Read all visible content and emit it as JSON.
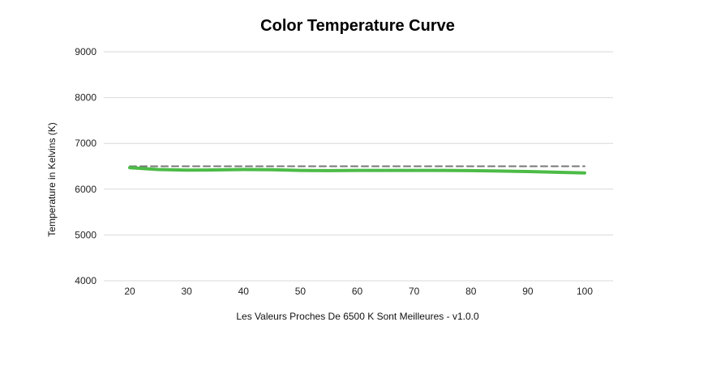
{
  "chart_data": {
    "type": "line",
    "title": "Color Temperature Curve",
    "xlabel": "Les Valeurs Proches De 6500 K Sont Meilleures - v1.0.0",
    "ylabel": "Temperature in Kelvins  (K)",
    "xlim": [
      20,
      100
    ],
    "ylim": [
      4000,
      9000
    ],
    "x_ticks": [
      20,
      30,
      40,
      50,
      60,
      70,
      80,
      90,
      100
    ],
    "y_ticks": [
      4000,
      5000,
      6000,
      7000,
      8000,
      9000
    ],
    "x_tick_labels": [
      "20",
      "30",
      "40",
      "50",
      "60",
      "70",
      "80",
      "90",
      "100"
    ],
    "y_tick_labels": [
      "4000",
      "5000",
      "6000",
      "7000",
      "8000",
      "9000"
    ],
    "grid": "horizontal",
    "legend": "none",
    "series": [
      {
        "role": "reference",
        "style": "dashed",
        "color": "#777777",
        "x": [
          20,
          100
        ],
        "y": [
          6500,
          6500
        ]
      },
      {
        "role": "measured",
        "style": "solid",
        "color": "#4cbb47",
        "x": [
          20,
          25,
          30,
          35,
          40,
          45,
          50,
          55,
          60,
          65,
          70,
          75,
          80,
          85,
          90,
          95,
          100
        ],
        "y": [
          6470,
          6430,
          6415,
          6420,
          6430,
          6425,
          6410,
          6405,
          6410,
          6410,
          6410,
          6410,
          6405,
          6395,
          6385,
          6370,
          6355
        ]
      }
    ]
  }
}
